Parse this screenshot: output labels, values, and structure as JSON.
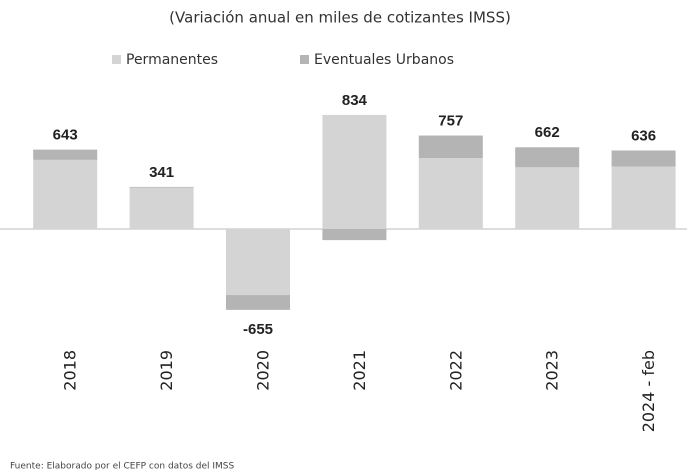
{
  "chart_data": {
    "type": "stacked_bar",
    "title": "(Variación anual en miles de cotizantes IMSS)",
    "categories": [
      "2018",
      "2019",
      "2020",
      "2021",
      "2022",
      "2023",
      "2024 - feb"
    ],
    "series": [
      {
        "name": "Permanentes",
        "color": "#d4d4d4",
        "values": [
          560,
          335,
          -535,
          924,
          575,
          500,
          505
        ]
      },
      {
        "name": "Eventuales Urbanos",
        "color": "#b4b4b4",
        "values": [
          83,
          6,
          -120,
          -90,
          182,
          162,
          131
        ]
      }
    ],
    "totals": [
      643,
      341,
      -655,
      834,
      757,
      662,
      636
    ],
    "source": "Fuente: Elaborado por el CEFP con datos del IMSS"
  }
}
